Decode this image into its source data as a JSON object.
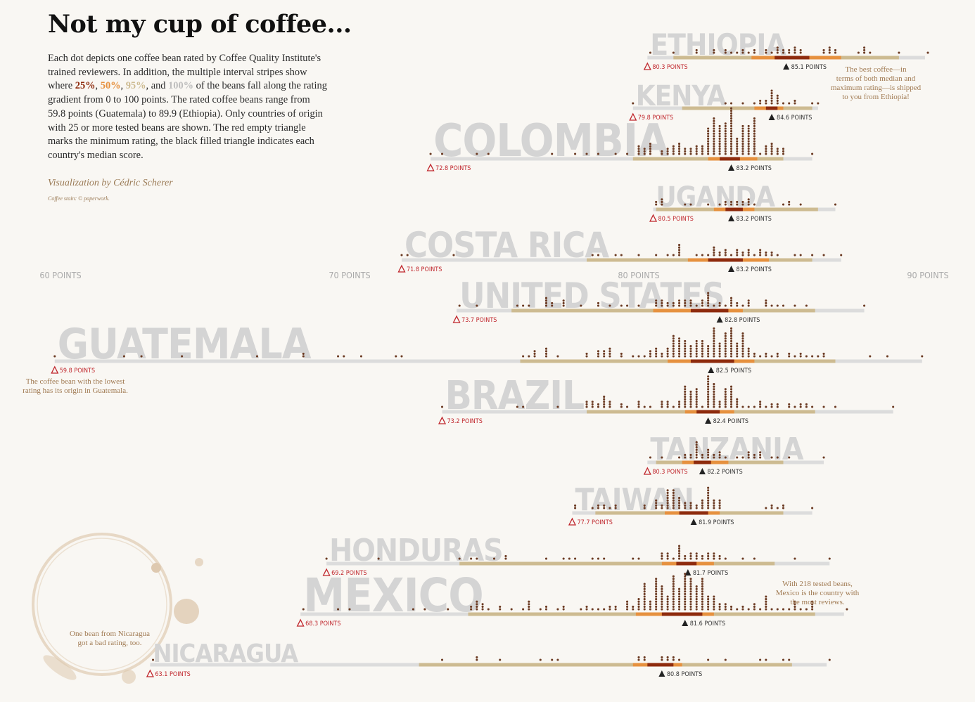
{
  "title": "Not my cup of coffee...",
  "intro": {
    "before": "Each dot depicts one coffee bean rated by Coffee Quality Institute's trained reviewers. In addition, the multiple interval stripes show where ",
    "q25": "25%",
    "sep1": ", ",
    "q50": "50%",
    "sep2": ", ",
    "q95": "95%",
    "sep3": ", and ",
    "q100": "100%",
    "after": " of the beans fall along the rating gradient from 0 to 100 points. The rated coffee beans range from 59.8 points (Guatemala) to 89.9 (Ethiopia). Only countries of origin with 25 or more tested beans are shown. The red empty triangle marks the minimum rating, the black filled triangle indicates each country's median score."
  },
  "byline": "Visualization by Cédric Scherer",
  "credit": "Coffee stain: © paperwork.",
  "colors": {
    "background": "#f9f7f3",
    "dot": "#6b3a22",
    "stripe100": "#dcdcdc",
    "stripe95": "#cdbb91",
    "stripe50": "#e6913f",
    "stripe25": "#8e2b0d",
    "minTriangle": "#c0262c",
    "medianTriangle": "#222222",
    "countryLabel": "#d4d4d4",
    "axisLabel": "#aaaaaa",
    "annotation": "#a07a52",
    "stain": "#c9a57a"
  },
  "chart_data": {
    "type": "dotplot",
    "x_axis": {
      "min": 60,
      "max": 90,
      "ticks": [
        60,
        70,
        80,
        90
      ],
      "tick_labels": [
        "60 POINTS",
        "70 POINTS",
        "80 POINTS",
        "90 POINTS"
      ]
    },
    "countries": [
      {
        "name": "ETHIOPIA",
        "n": 44,
        "min": 80.3,
        "max": 89.9,
        "median": 85.1,
        "q25": [
          84.7,
          85.9
        ],
        "q50": [
          83.9,
          87.0
        ],
        "q95": [
          81.2,
          89.0
        ],
        "min_label": "80.3 POINTS",
        "median_label": "85.1 POINTS"
      },
      {
        "name": "KENYA",
        "n": 25,
        "min": 79.8,
        "max": 86.2,
        "median": 84.6,
        "q25": [
          84.4,
          84.8
        ],
        "q50": [
          84.0,
          85.0
        ],
        "q95": [
          81.5,
          86.0
        ],
        "min_label": "79.8 POINTS",
        "median_label": "84.6 POINTS"
      },
      {
        "name": "COLOMBIA",
        "n": 183,
        "min": 72.8,
        "max": 86.0,
        "median": 83.2,
        "q25": [
          82.8,
          83.5
        ],
        "q50": [
          82.4,
          84.1
        ],
        "q95": [
          79.8,
          85.0
        ],
        "min_label": "72.8 POINTS",
        "median_label": "83.2 POINTS"
      },
      {
        "name": "UGANDA",
        "n": 26,
        "min": 80.5,
        "max": 86.8,
        "median": 83.2,
        "q25": [
          83.0,
          83.6
        ],
        "q50": [
          82.6,
          84.0
        ],
        "q95": [
          80.6,
          86.2
        ],
        "min_label": "80.5 POINTS",
        "median_label": "83.2 POINTS"
      },
      {
        "name": "COSTA RICA",
        "n": 51,
        "min": 71.8,
        "max": 87.0,
        "median": 83.2,
        "q25": [
          82.4,
          83.6
        ],
        "q50": [
          81.7,
          84.5
        ],
        "q95": [
          78.2,
          86.0
        ],
        "min_label": "71.8 POINTS",
        "median_label": "83.2 POINTS"
      },
      {
        "name": "UNITED STATES",
        "n": 73,
        "min": 73.7,
        "max": 87.8,
        "median": 82.8,
        "q25": [
          81.8,
          83.1
        ],
        "q50": [
          80.5,
          83.6
        ],
        "q95": [
          75.6,
          86.1
        ],
        "min_label": "73.7 POINTS",
        "median_label": "82.8 POINTS"
      },
      {
        "name": "GUATEMALA",
        "n": 181,
        "min": 59.8,
        "max": 89.8,
        "median": 82.5,
        "q25": [
          81.8,
          83.3
        ],
        "q50": [
          81.0,
          84.0
        ],
        "q95": [
          75.9,
          86.8
        ],
        "min_label": "59.8 POINTS",
        "median_label": "82.5 POINTS"
      },
      {
        "name": "BRAZIL",
        "n": 132,
        "min": 73.2,
        "max": 88.8,
        "median": 82.4,
        "q25": [
          82.0,
          82.8
        ],
        "q50": [
          81.6,
          83.3
        ],
        "q95": [
          78.2,
          86.1
        ],
        "min_label": "73.2 POINTS",
        "median_label": "82.4 POINTS"
      },
      {
        "name": "TANZANIA",
        "n": 40,
        "min": 80.3,
        "max": 86.4,
        "median": 82.2,
        "q25": [
          81.9,
          82.5
        ],
        "q50": [
          81.5,
          83.1
        ],
        "q95": [
          80.6,
          85.0
        ],
        "min_label": "80.3 POINTS",
        "median_label": "82.2 POINTS"
      },
      {
        "name": "TAIWAN",
        "n": 75,
        "min": 77.7,
        "max": 86.0,
        "median": 81.9,
        "q25": [
          81.4,
          82.4
        ],
        "q50": [
          80.9,
          82.8
        ],
        "q95": [
          78.5,
          85.0
        ],
        "min_label": "77.7 POINTS",
        "median_label": "81.9 POINTS"
      },
      {
        "name": "HONDURAS",
        "n": 53,
        "min": 69.2,
        "max": 86.6,
        "median": 81.7,
        "q25": [
          81.3,
          82.0
        ],
        "q50": [
          80.8,
          82.6
        ],
        "q95": [
          73.8,
          84.7
        ],
        "min_label": "69.2 POINTS",
        "median_label": "81.7 POINTS"
      },
      {
        "name": "MEXICO",
        "n": 218,
        "min": 68.3,
        "max": 87.1,
        "median": 81.6,
        "q25": [
          80.8,
          82.2
        ],
        "q50": [
          79.9,
          82.6
        ],
        "q95": [
          74.1,
          86.1
        ],
        "min_label": "68.3 POINTS",
        "median_label": "81.6 POINTS"
      },
      {
        "name": "NICARAGUA",
        "n": 26,
        "min": 63.1,
        "max": 86.5,
        "median": 80.8,
        "q25": [
          80.3,
          81.2
        ],
        "q50": [
          79.8,
          81.5
        ],
        "q95": [
          72.4,
          85.3
        ],
        "min_label": "63.1 POINTS",
        "median_label": "80.8 POINTS"
      }
    ],
    "annotations": [
      {
        "text": "The best coffee—in terms of both median and maximum rating—is shipped to you from Ethiopia!",
        "near": "ETHIOPIA"
      },
      {
        "text": "The coffee bean with the lowest rating has its origin in Guatemala.",
        "near": "GUATEMALA"
      },
      {
        "text": "With 218 tested beans, Mexico is the country with the most reviews.",
        "near": "MEXICO"
      },
      {
        "text": "One bean from Nicaragua got a bad rating, too.",
        "near": "NICARAGUA"
      }
    ]
  }
}
